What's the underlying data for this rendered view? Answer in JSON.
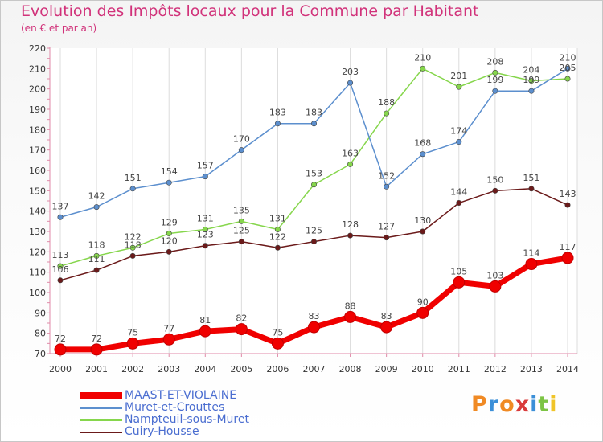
{
  "header": {
    "title": "Evolution des Impôts locaux pour la Commune par Habitant",
    "subtitle": "(en € et par an)"
  },
  "brand": {
    "text": "Proxiti"
  },
  "colors": {
    "title": "#d1327a",
    "legend_text": "#4a6dd0",
    "series": [
      "#f00000",
      "#5c8fce",
      "#86d64c",
      "#6b1a1a"
    ]
  },
  "chart_data": {
    "type": "line",
    "title": "Evolution des Impôts locaux pour la Commune par Habitant",
    "subtitle": "(en € et par an)",
    "xlabel": "",
    "ylabel": "",
    "x": [
      "2000",
      "2001",
      "2002",
      "2003",
      "2004",
      "2005",
      "2006",
      "2007",
      "2008",
      "2009",
      "2010",
      "2011",
      "2012",
      "2013",
      "2014"
    ],
    "ylim": [
      70,
      220
    ],
    "yticks": [
      70,
      80,
      90,
      100,
      110,
      120,
      130,
      140,
      150,
      160,
      170,
      180,
      190,
      200,
      210,
      220
    ],
    "grid": "vertical",
    "legend_placement": "bottom-left",
    "series": [
      {
        "name": "MAAST-ET-VIOLAINE",
        "color": "#f00000",
        "values": [
          72,
          72,
          75,
          77,
          81,
          82,
          75,
          83,
          88,
          83,
          90,
          105,
          103,
          114,
          117
        ]
      },
      {
        "name": "Muret-et-Crouttes",
        "color": "#5c8fce",
        "values": [
          137,
          142,
          151,
          154,
          157,
          170,
          183,
          183,
          203,
          152,
          168,
          174,
          199,
          199,
          210
        ]
      },
      {
        "name": "Nampteuil-sous-Muret",
        "color": "#86d64c",
        "values": [
          113,
          118,
          122,
          129,
          131,
          135,
          131,
          153,
          163,
          188,
          210,
          201,
          208,
          204,
          205
        ]
      },
      {
        "name": "Cuiry-Housse",
        "color": "#6b1a1a",
        "values": [
          106,
          111,
          118,
          120,
          123,
          125,
          122,
          125,
          128,
          127,
          130,
          144,
          150,
          151,
          143
        ]
      }
    ]
  }
}
